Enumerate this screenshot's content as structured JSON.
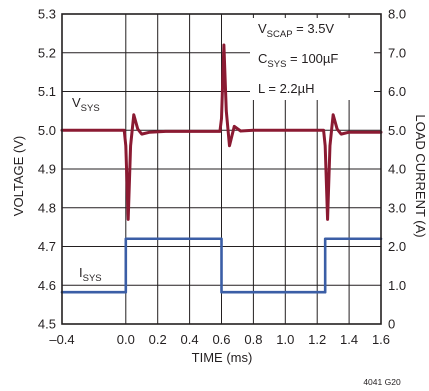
{
  "chart_data": {
    "type": "line",
    "title": "",
    "xlabel": "TIME (ms)",
    "ylabel_left": "VOLTAGE (V)",
    "ylabel_right": "LOAD CURRENT (A)",
    "x_axis": {
      "range": [
        -0.4,
        1.6
      ],
      "ticks": [
        "–0.4",
        "0.0",
        "0.2",
        "0.4",
        "0.6",
        "0.8",
        "1.0",
        "1.2",
        "1.4",
        "1.6"
      ],
      "tick_values": [
        -0.4,
        0,
        0.2,
        0.4,
        0.6,
        0.8,
        1.0,
        1.2,
        1.4,
        1.6
      ]
    },
    "y_axis_left": {
      "range": [
        4.5,
        5.3
      ],
      "ticks": [
        "4.5",
        "4.6",
        "4.7",
        "4.8",
        "4.9",
        "5.0",
        "5.1",
        "5.2",
        "5.3"
      ],
      "tick_values": [
        4.5,
        4.6,
        4.7,
        4.8,
        4.9,
        5.0,
        5.1,
        5.2,
        5.3
      ]
    },
    "y_axis_right": {
      "range": [
        0,
        8
      ],
      "ticks": [
        "0",
        "1.0",
        "2.0",
        "3.0",
        "4.0",
        "5.0",
        "6.0",
        "7.0",
        "8.0"
      ],
      "tick_values": [
        0,
        1,
        2,
        3,
        4,
        5,
        6,
        7,
        8
      ]
    },
    "grid": true,
    "series": [
      {
        "name": "VSYS",
        "label_main": "V",
        "label_sub": "SYS",
        "axis": "left",
        "color": "#8b1a32",
        "points": [
          [
            -0.4,
            5.0
          ],
          [
            -0.01,
            5.0
          ],
          [
            0.0,
            4.96
          ],
          [
            0.015,
            4.77
          ],
          [
            0.03,
            4.96
          ],
          [
            0.05,
            5.04
          ],
          [
            0.075,
            5.003
          ],
          [
            0.1,
            4.99
          ],
          [
            0.15,
            4.995
          ],
          [
            0.25,
            4.997
          ],
          [
            0.59,
            4.997
          ],
          [
            0.6,
            5.03
          ],
          [
            0.615,
            5.22
          ],
          [
            0.63,
            5.05
          ],
          [
            0.65,
            4.96
          ],
          [
            0.68,
            5.01
          ],
          [
            0.72,
            4.998
          ],
          [
            0.8,
            5.0
          ],
          [
            1.24,
            5.0
          ],
          [
            1.25,
            4.96
          ],
          [
            1.265,
            4.77
          ],
          [
            1.28,
            4.96
          ],
          [
            1.3,
            5.04
          ],
          [
            1.325,
            5.003
          ],
          [
            1.35,
            4.99
          ],
          [
            1.4,
            4.995
          ],
          [
            1.6,
            4.995
          ]
        ]
      },
      {
        "name": "ISYS",
        "label_main": "I",
        "label_sub": "SYS",
        "axis": "right",
        "color": "#3b5ea6",
        "points": [
          [
            -0.4,
            0.82
          ],
          [
            0.0,
            0.82
          ],
          [
            0.0,
            2.2
          ],
          [
            0.6,
            2.2
          ],
          [
            0.6,
            0.82
          ],
          [
            1.25,
            0.82
          ],
          [
            1.25,
            2.2
          ],
          [
            1.6,
            2.2
          ]
        ]
      }
    ],
    "annotations": [
      {
        "main": "V",
        "sub": "SCAP",
        "rest": " = 3.5V"
      },
      {
        "main": "C",
        "sub": "SYS",
        "rest": " = 100µF"
      },
      {
        "main": "L = 2.2µH",
        "sub": "",
        "rest": ""
      }
    ],
    "figure_code": "4041 G20"
  },
  "colors": {
    "vsys": "#8b1a32",
    "isys": "#3b5ea6",
    "grid": "#231f20",
    "axis": "#231f20",
    "text": "#231f20"
  }
}
